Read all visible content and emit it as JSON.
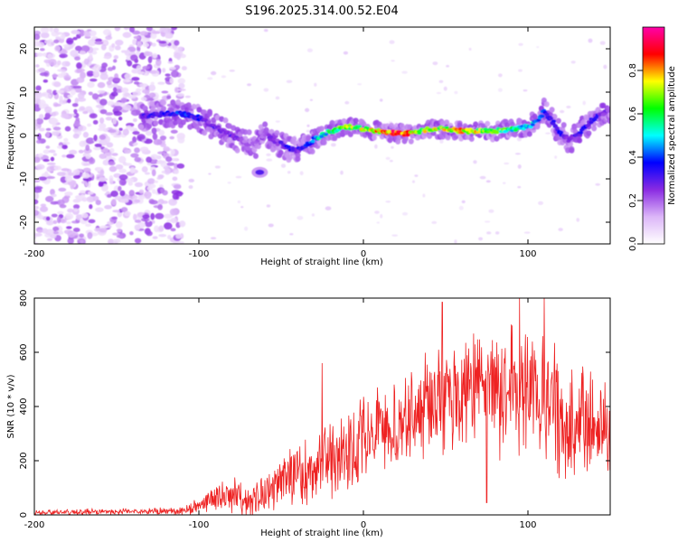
{
  "title": "S196.2025.314.00.52.E04",
  "chart_data": [
    {
      "type": "heatmap",
      "xlabel": "Height of straight line (km)",
      "ylabel": "Frequency (Hz)",
      "xlim": [
        -200,
        150
      ],
      "ylim": [
        -25,
        25
      ],
      "xticks": [
        -200,
        -100,
        0,
        100
      ],
      "yticks": [
        -20,
        -10,
        0,
        10,
        20
      ],
      "colorbar": {
        "label": "Normalized spectral amplitude",
        "range": [
          0,
          1
        ],
        "ticks": [
          "0.0",
          "0.2",
          "0.4",
          "0.6",
          "0.8"
        ],
        "colors": [
          "#ffffff",
          "#dcb6f8",
          "#8a2be2",
          "#0000ff",
          "#00ffff",
          "#00ff00",
          "#ffff00",
          "#ff0000",
          "#ff00aa"
        ]
      },
      "ridge": {
        "x": [
          -135,
          -120,
          -110,
          -100,
          -95,
          -90,
          -85,
          -80,
          -75,
          -70,
          -65,
          -60,
          -55,
          -50,
          -45,
          -40,
          -35,
          -30,
          -25,
          -20,
          -15,
          -10,
          -5,
          0,
          10,
          20,
          30,
          40,
          50,
          60,
          70,
          80,
          90,
          100,
          105,
          110,
          115,
          120,
          125,
          130,
          135,
          140,
          145,
          150
        ],
        "y": [
          4.5,
          5,
          5,
          4,
          3,
          2,
          1,
          0,
          -1,
          -2,
          -2,
          0.5,
          -1,
          -2,
          -3,
          -3.5,
          -2.5,
          -1,
          0,
          1,
          1.5,
          2,
          2,
          1.5,
          1,
          0.5,
          0.5,
          1.5,
          1.5,
          1,
          1,
          1,
          1.5,
          2,
          3,
          5.5,
          3,
          0.5,
          -1,
          0,
          2,
          4,
          5,
          6
        ],
        "amplitude": [
          0.3,
          0.35,
          0.4,
          0.35,
          0.25,
          0.3,
          0.25,
          0.3,
          0.25,
          0.2,
          0.2,
          0.25,
          0.25,
          0.3,
          0.35,
          0.3,
          0.4,
          0.5,
          0.55,
          0.6,
          0.65,
          0.7,
          0.7,
          0.75,
          0.8,
          0.9,
          0.85,
          0.7,
          0.75,
          0.8,
          0.75,
          0.7,
          0.6,
          0.55,
          0.45,
          0.4,
          0.35,
          0.35,
          0.3,
          0.3,
          0.35,
          0.35,
          0.3,
          0.25
        ]
      },
      "noise_region": {
        "x_range": [
          -200,
          -110
        ],
        "y_range": [
          -25,
          25
        ],
        "amplitude": [
          0.05,
          0.25
        ]
      },
      "isolated_blob": {
        "x": -63,
        "y": -8.5,
        "amplitude": 0.3
      }
    },
    {
      "type": "line",
      "xlabel": "Height of straight line (km)",
      "ylabel": "SNR (10 * v/v)",
      "xlim": [
        -200,
        150
      ],
      "ylim": [
        0,
        800
      ],
      "xticks": [
        -200,
        -100,
        0,
        100
      ],
      "yticks": [
        0,
        200,
        400,
        600,
        800
      ],
      "color": "#ee2222",
      "envelope": {
        "x": [
          -200,
          -150,
          -120,
          -110,
          -100,
          -90,
          -80,
          -70,
          -60,
          -50,
          -40,
          -30,
          -20,
          -10,
          0,
          10,
          20,
          30,
          40,
          50,
          60,
          70,
          80,
          90,
          100,
          110,
          120,
          130,
          140,
          150
        ],
        "mean": [
          10,
          12,
          14,
          18,
          30,
          60,
          70,
          50,
          80,
          110,
          150,
          160,
          200,
          230,
          270,
          300,
          330,
          380,
          400,
          450,
          460,
          450,
          460,
          450,
          440,
          400,
          380,
          360,
          330,
          280
        ],
        "spread": [
          12,
          14,
          15,
          20,
          40,
          70,
          80,
          70,
          90,
          110,
          140,
          160,
          170,
          180,
          190,
          200,
          210,
          220,
          230,
          280,
          280,
          260,
          270,
          280,
          300,
          290,
          280,
          270,
          260,
          250
        ]
      },
      "peaks": [
        {
          "x": 48,
          "y": 785
        },
        {
          "x": 95,
          "y": 800
        },
        {
          "x": 110,
          "y": 800
        },
        {
          "x": -25,
          "y": 560
        },
        {
          "x": 75,
          "y": 45
        }
      ]
    }
  ]
}
